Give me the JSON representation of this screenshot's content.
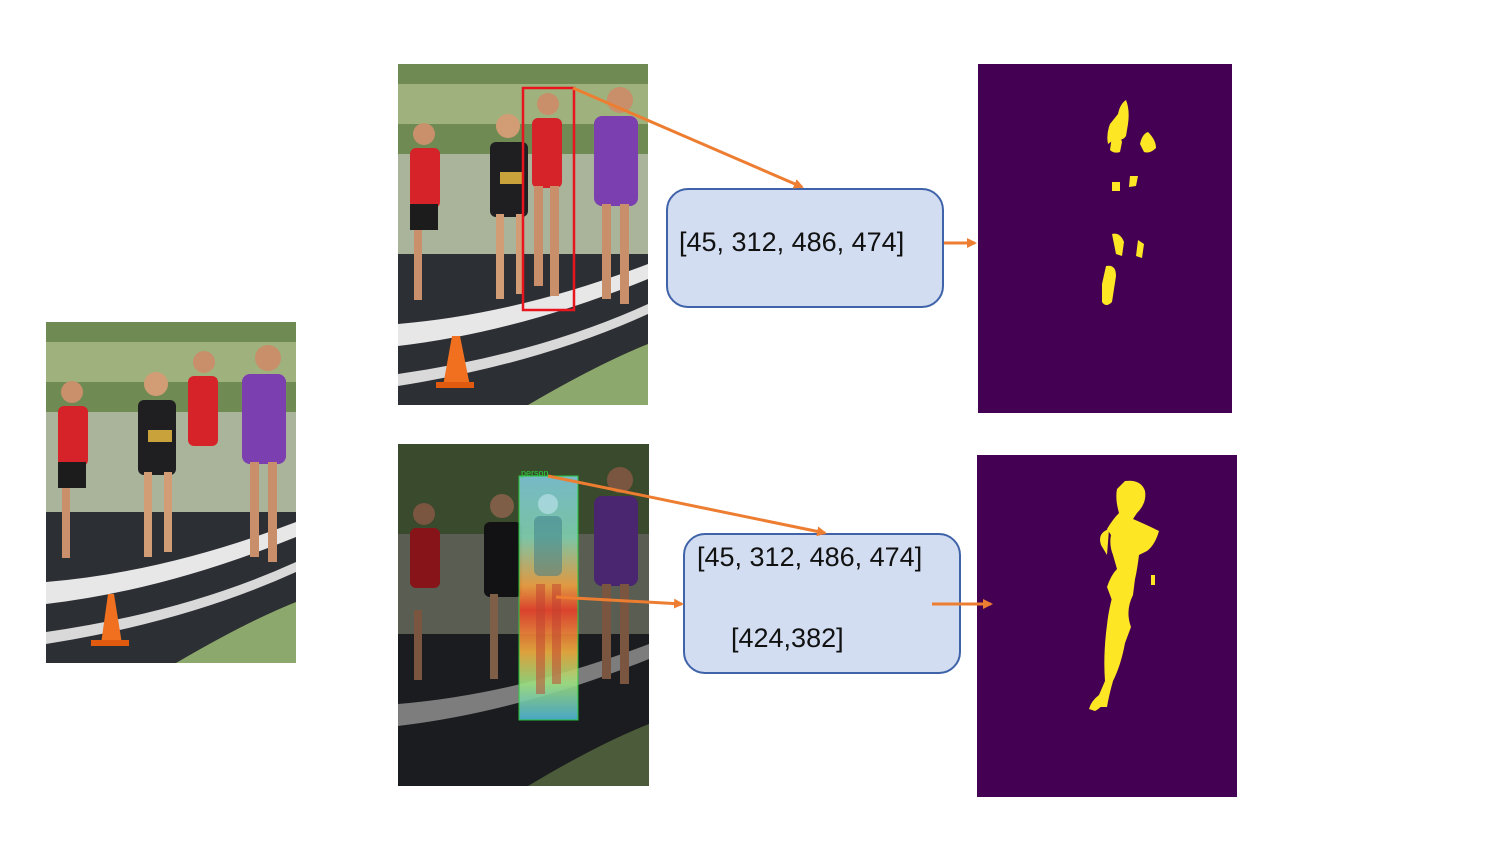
{
  "top_row": {
    "box_text": "[45, 312, 486, 474]"
  },
  "bottom_row": {
    "box_line1": "[45, 312, 486, 474]",
    "box_line2": "[424,382]",
    "detection_tag": "person"
  },
  "colors": {
    "arrow": "#ed7d31",
    "box_fill": "#d2ddf1",
    "box_border": "#3f63a9",
    "mask_background": "#440154",
    "mask_foreground": "#fde725",
    "bbox": "#e8141e"
  }
}
